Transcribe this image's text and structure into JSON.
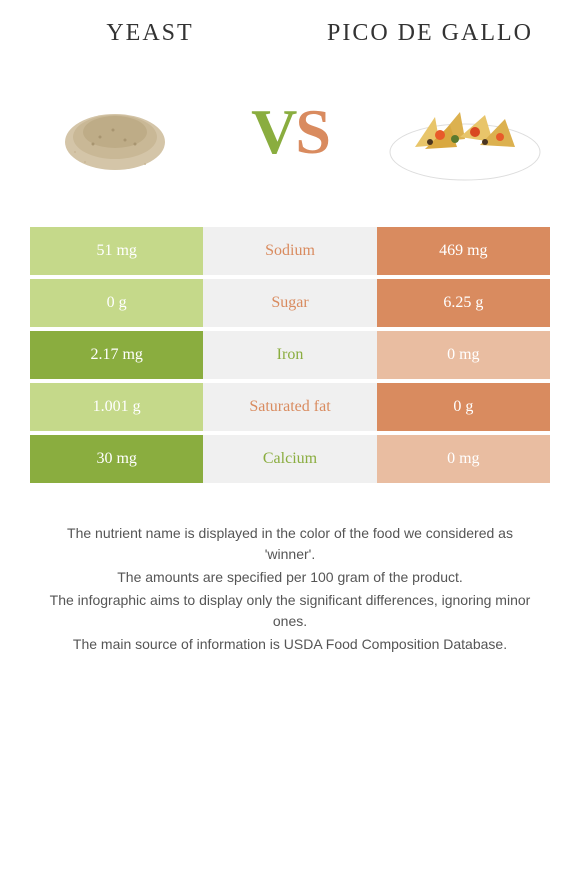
{
  "left_food": {
    "title": "Yeast"
  },
  "right_food": {
    "title": "Pico de Gallo"
  },
  "vs": {
    "v": "V",
    "s": "S"
  },
  "colors": {
    "green_dark": "#8aad3f",
    "green_light": "#c5d98a",
    "orange_dark": "#d98b5f",
    "orange_light": "#e9bda1",
    "mid_bg": "#f0f0f0"
  },
  "rows": [
    {
      "label": "Sodium",
      "left": "51 mg",
      "right": "469 mg",
      "winner": "right"
    },
    {
      "label": "Sugar",
      "left": "0 g",
      "right": "6.25 g",
      "winner": "right"
    },
    {
      "label": "Iron",
      "left": "2.17 mg",
      "right": "0 mg",
      "winner": "left"
    },
    {
      "label": "Saturated fat",
      "left": "1.001 g",
      "right": "0 g",
      "winner": "right"
    },
    {
      "label": "Calcium",
      "left": "30 mg",
      "right": "0 mg",
      "winner": "left"
    }
  ],
  "footer": [
    "The nutrient name is displayed in the color of the food we considered as 'winner'.",
    "The amounts are specified per 100 gram of the product.",
    "The infographic aims to display only the significant differences, ignoring minor ones.",
    "The main source of information is USDA Food Composition Database."
  ]
}
